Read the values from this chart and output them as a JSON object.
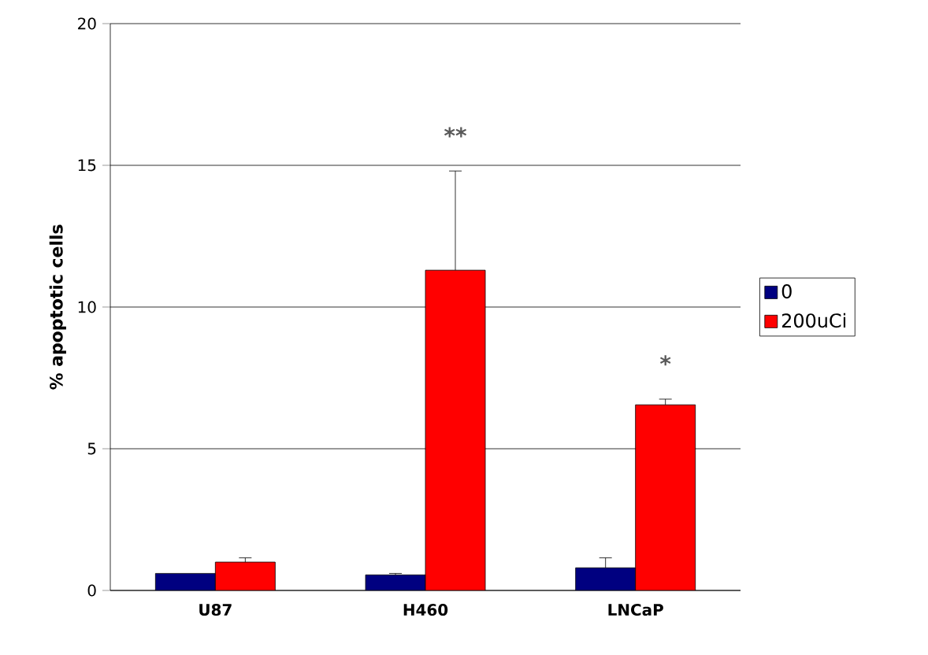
{
  "chart_data": {
    "type": "bar",
    "ylabel": "% apoptotic cells",
    "categories": [
      "U87",
      "H460",
      "LNCaP"
    ],
    "series": [
      {
        "name": "0",
        "color": "#000080",
        "values": [
          0.6,
          0.55,
          0.8
        ],
        "errors": [
          null,
          0.05,
          0.35
        ]
      },
      {
        "name": "200uCi",
        "color": "#ff0000",
        "values": [
          1.0,
          11.3,
          6.55
        ],
        "errors": [
          0.15,
          3.5,
          0.2
        ]
      }
    ],
    "annotations": [
      "**",
      "*"
    ],
    "ylim": [
      0,
      20
    ],
    "yticks": [
      0,
      5,
      10,
      15,
      20
    ],
    "grid": "y",
    "legend": "right"
  }
}
